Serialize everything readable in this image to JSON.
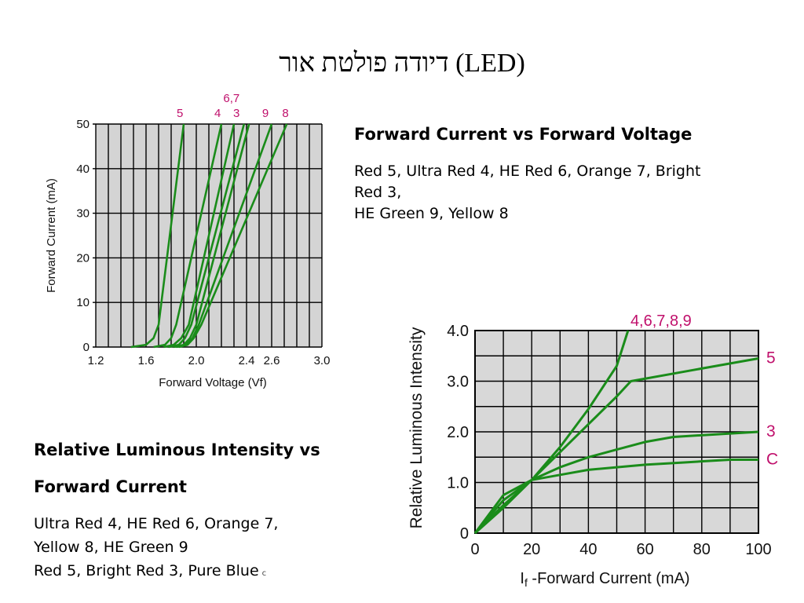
{
  "slide": {
    "title": "דיודה פולטת אור (LED)"
  },
  "text1": {
    "heading": "Forward Current vs  Forward Voltage",
    "lines": [
      "Red 5,  Ultra Red 4,  HE Red 6,  Orange 7,  Bright",
      "Red 3,",
      "HE Green 9,  Yellow 8"
    ]
  },
  "text2": {
    "heading_lines": [
      "Relative Luminous Intensity vs",
      "Forward Current"
    ],
    "lines": [
      "Ultra Red 4,  HE Red 6,  Orange 7,",
      "Yellow 8,  HE Green 9",
      "Red 5,  Bright Red 3,  Pure Blue"
    ],
    "note": "c"
  },
  "chart_data": [
    {
      "type": "line",
      "xlabel": "Forward Voltage (Vf)",
      "ylabel": "Forward Current (mA)",
      "xlim": [
        1.2,
        3.0
      ],
      "ylim": [
        0,
        50
      ],
      "x_ticks": [
        "1.2",
        "1.6",
        "2.0",
        "2.4",
        "2.6",
        "3.0"
      ],
      "y_ticks": [
        "0",
        "10",
        "20",
        "30",
        "40",
        "50"
      ],
      "grid": true,
      "line_color": "#1a8c1a",
      "label_color": "#c0106c",
      "top_labels": [
        {
          "text": "5",
          "x": 1.87
        },
        {
          "text": "4",
          "x": 2.17
        },
        {
          "text": "6,7",
          "x": 2.28,
          "raised": true
        },
        {
          "text": "3",
          "x": 2.32
        },
        {
          "text": "9",
          "x": 2.55
        },
        {
          "text": "8",
          "x": 2.71
        }
      ],
      "series": [
        {
          "x": [
            1.48,
            1.6,
            1.66,
            1.7,
            1.9
          ],
          "y": [
            0,
            0.5,
            2,
            5,
            50
          ]
        },
        {
          "x": [
            1.66,
            1.75,
            1.8,
            1.84,
            2.2
          ],
          "y": [
            0,
            0.5,
            2,
            5,
            50
          ]
        },
        {
          "x": [
            1.74,
            1.82,
            1.88,
            1.94,
            2.3
          ],
          "y": [
            0,
            0.5,
            2,
            5,
            50
          ]
        },
        {
          "x": [
            1.78,
            1.86,
            1.91,
            1.96,
            2.38
          ],
          "y": [
            0,
            0.5,
            2,
            5,
            50
          ]
        },
        {
          "x": [
            1.82,
            1.9,
            1.95,
            2.0,
            2.42
          ],
          "y": [
            0,
            0.5,
            2,
            5,
            50
          ]
        },
        {
          "x": [
            1.84,
            1.92,
            1.97,
            2.02,
            2.6
          ],
          "y": [
            0,
            0.5,
            2,
            5,
            50
          ]
        },
        {
          "x": [
            1.86,
            1.93,
            1.98,
            2.04,
            2.72
          ],
          "y": [
            0,
            0.5,
            2,
            5,
            50
          ]
        }
      ]
    },
    {
      "type": "line",
      "xlabel": "If -Forward Current (mA)",
      "xlabel_main": "I",
      "xlabel_sub": "f",
      "xlabel_rest": " -Forward Current (mA)",
      "ylabel": "Relative Luminous Intensity",
      "xlim": [
        0,
        100
      ],
      "ylim": [
        0,
        4
      ],
      "x_ticks": [
        "0",
        "20",
        "40",
        "60",
        "80",
        "100"
      ],
      "y_ticks": [
        "0",
        "1.0",
        "2.0",
        "3.0",
        "4.0"
      ],
      "grid": true,
      "line_color": "#1a8c1a",
      "label_color": "#c0106c",
      "series": [
        {
          "name": "4,6,7,8,9",
          "x": [
            0,
            10,
            20,
            30,
            40,
            50,
            54
          ],
          "y": [
            0,
            0.5,
            1.05,
            1.7,
            2.45,
            3.3,
            4.0
          ]
        },
        {
          "name": "5",
          "x": [
            0,
            10,
            20,
            30,
            40,
            50,
            55,
            70,
            85,
            100
          ],
          "y": [
            0,
            0.55,
            1.05,
            1.6,
            2.15,
            2.7,
            3.0,
            3.15,
            3.3,
            3.45
          ]
        },
        {
          "name": "3",
          "x": [
            0,
            10,
            20,
            30,
            40,
            50,
            60,
            70,
            85,
            100
          ],
          "y": [
            0,
            0.65,
            1.05,
            1.3,
            1.5,
            1.65,
            1.8,
            1.9,
            1.95,
            2.0
          ]
        },
        {
          "name": "C",
          "x": [
            0,
            10,
            20,
            30,
            40,
            50,
            60,
            75,
            90,
            100
          ],
          "y": [
            0,
            0.75,
            1.05,
            1.15,
            1.25,
            1.3,
            1.35,
            1.4,
            1.45,
            1.45
          ]
        }
      ]
    }
  ]
}
